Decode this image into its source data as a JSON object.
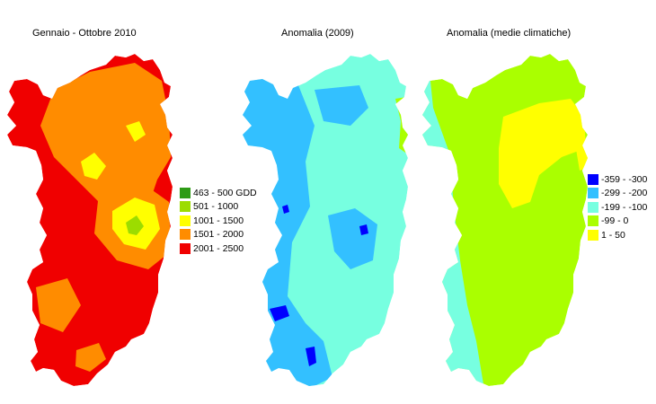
{
  "panels": [
    {
      "title": "Gennaio - Ottobre 2010"
    },
    {
      "title": "Anomalia (2009)"
    },
    {
      "title": "Anomalia (medie climatiche)"
    }
  ],
  "legend_left": {
    "items": [
      {
        "label": "463 - 500 GDD",
        "color": "#2e9b16"
      },
      {
        "label": "501 - 1000",
        "color": "#9cdc00"
      },
      {
        "label": "1001 - 1500",
        "color": "#ffff00"
      },
      {
        "label": "1501 - 2000",
        "color": "#ff8c00"
      },
      {
        "label": "2001 - 2500",
        "color": "#f00000"
      }
    ]
  },
  "legend_right": {
    "items": [
      {
        "label": "-359 - -300",
        "color": "#0000ff"
      },
      {
        "label": "-299 - -200",
        "color": "#33c0ff"
      },
      {
        "label": "-199 - -100",
        "color": "#77ffe0"
      },
      {
        "label": "-99 - 0",
        "color": "#aaff00"
      },
      {
        "label": "1 - 50",
        "color": "#ffff00"
      }
    ]
  }
}
